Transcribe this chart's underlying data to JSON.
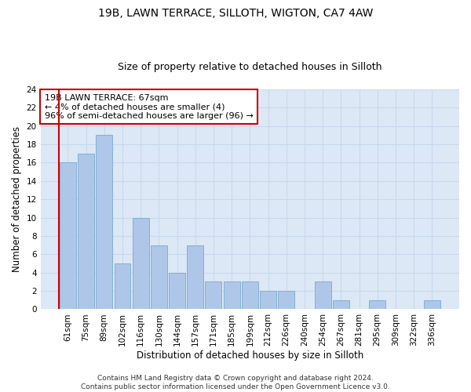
{
  "title_line1": "19B, LAWN TERRACE, SILLOTH, WIGTON, CA7 4AW",
  "title_line2": "Size of property relative to detached houses in Silloth",
  "xlabel": "Distribution of detached houses by size in Silloth",
  "ylabel": "Number of detached properties",
  "categories": [
    "61sqm",
    "75sqm",
    "89sqm",
    "102sqm",
    "116sqm",
    "130sqm",
    "144sqm",
    "157sqm",
    "171sqm",
    "185sqm",
    "199sqm",
    "212sqm",
    "226sqm",
    "240sqm",
    "254sqm",
    "267sqm",
    "281sqm",
    "295sqm",
    "309sqm",
    "322sqm",
    "336sqm"
  ],
  "values": [
    16,
    17,
    19,
    5,
    10,
    7,
    4,
    7,
    3,
    3,
    3,
    2,
    2,
    0,
    3,
    1,
    0,
    1,
    0,
    0,
    1
  ],
  "bar_color": "#aec6e8",
  "bar_edge_color": "#7aaad0",
  "highlight_line_color": "#cc0000",
  "annotation_line1": "19B LAWN TERRACE: 67sqm",
  "annotation_line2": "← 4% of detached houses are smaller (4)",
  "annotation_line3": "96% of semi-detached houses are larger (96) →",
  "annotation_box_color": "#ffffff",
  "annotation_box_edge_color": "#cc0000",
  "ylim": [
    0,
    24
  ],
  "yticks": [
    0,
    2,
    4,
    6,
    8,
    10,
    12,
    14,
    16,
    18,
    20,
    22,
    24
  ],
  "grid_color": "#c8d8ee",
  "background_color": "#dce8f5",
  "footer_text": "Contains HM Land Registry data © Crown copyright and database right 2024.\nContains public sector information licensed under the Open Government Licence v3.0.",
  "title_fontsize": 10,
  "subtitle_fontsize": 9,
  "axis_label_fontsize": 8.5,
  "tick_fontsize": 7.5,
  "annotation_fontsize": 8,
  "footer_fontsize": 6.5
}
